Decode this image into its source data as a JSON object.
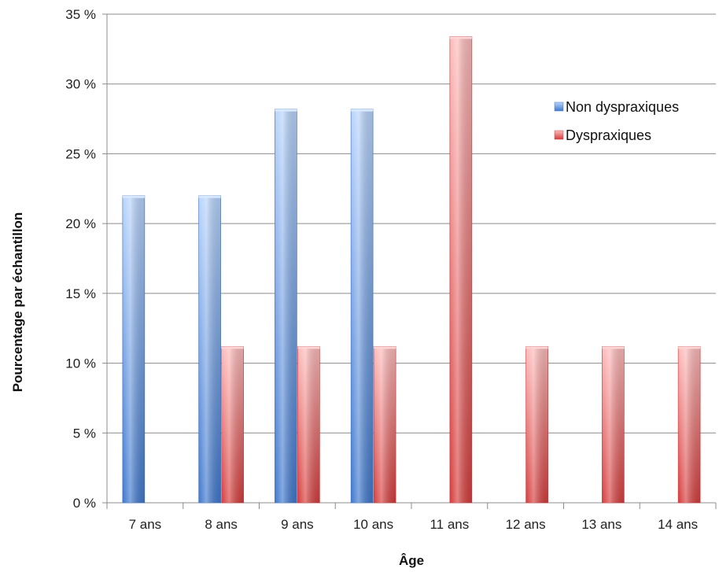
{
  "chart_data": {
    "type": "bar",
    "categories": [
      "7 ans",
      "8 ans",
      "9 ans",
      "10 ans",
      "11 ans",
      "12 ans",
      "13 ans",
      "14 ans"
    ],
    "series": [
      {
        "name": "Non dyspraxiques",
        "values": [
          22,
          22,
          28.2,
          28.2,
          0,
          0,
          0,
          0
        ],
        "color": "#4a86d8"
      },
      {
        "name": "Dyspraxiques",
        "values": [
          0,
          11.2,
          11.2,
          11.2,
          33.4,
          11.2,
          11.2,
          11.2
        ],
        "color": "#de4b4b"
      }
    ],
    "xlabel": "Âge",
    "ylabel": "Pourcentage par échantillon",
    "ylim": [
      0,
      35
    ],
    "yticks": [
      "0 %",
      "5 %",
      "10 %",
      "15 %",
      "20 %",
      "25 %",
      "30 %",
      "35 %"
    ],
    "ytick_values": [
      0,
      5,
      10,
      15,
      20,
      25,
      30,
      35
    ],
    "grid": true,
    "legend_position": "top-right"
  }
}
